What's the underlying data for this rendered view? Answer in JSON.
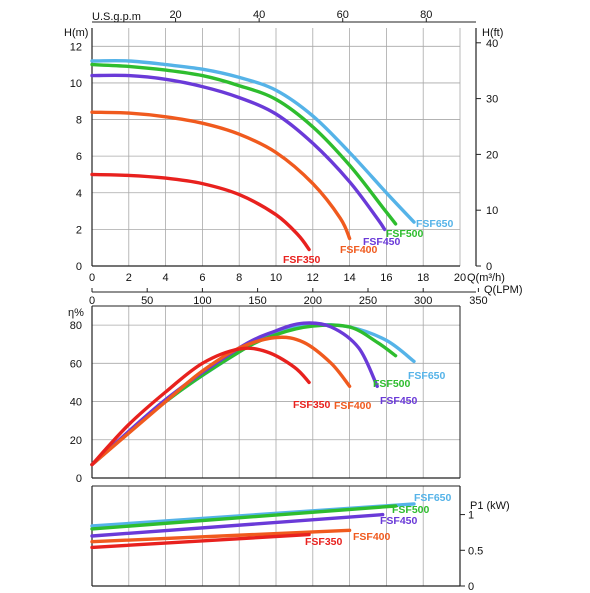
{
  "chart_data": [
    {
      "panel": "head",
      "type": "line",
      "x_unit_label": "Q(m³/h)",
      "xlim": [
        0,
        20
      ],
      "x_ticks": [
        0,
        2,
        4,
        6,
        8,
        10,
        12,
        14,
        16,
        18,
        20
      ],
      "secondary_x": {
        "label": "Q(LPM)",
        "ticks": [
          0,
          50,
          100,
          150,
          200,
          250,
          300,
          350
        ]
      },
      "top_x": {
        "label": "U.S.g.p.m",
        "ticks": [
          20,
          40,
          60,
          80
        ]
      },
      "ylabel": "H(m)",
      "ylim": [
        0,
        13
      ],
      "y_ticks": [
        0,
        2,
        4,
        6,
        8,
        10,
        12
      ],
      "secondary_y": {
        "label": "H(ft)",
        "ticks": [
          0,
          10,
          20,
          30,
          40
        ]
      },
      "grid": true,
      "series": [
        {
          "name": "FSF650",
          "color": "#55b3e8",
          "points": [
            [
              0,
              11.2
            ],
            [
              2,
              11.2
            ],
            [
              4,
              11.0
            ],
            [
              6,
              10.75
            ],
            [
              8,
              10.3
            ],
            [
              10,
              9.6
            ],
            [
              12,
              8.2
            ],
            [
              14,
              6.2
            ],
            [
              16,
              4.0
            ],
            [
              17.5,
              2.4
            ]
          ]
        },
        {
          "name": "FSF500",
          "color": "#2ebd2e",
          "points": [
            [
              0,
              11.0
            ],
            [
              2,
              10.9
            ],
            [
              4,
              10.7
            ],
            [
              6,
              10.4
            ],
            [
              8,
              9.85
            ],
            [
              10,
              9.1
            ],
            [
              12,
              7.6
            ],
            [
              14,
              5.5
            ],
            [
              15.8,
              3.2
            ],
            [
              16.5,
              2.3
            ]
          ]
        },
        {
          "name": "FSF450",
          "color": "#6a3ad8",
          "points": [
            [
              0,
              10.4
            ],
            [
              2,
              10.4
            ],
            [
              4,
              10.2
            ],
            [
              6,
              9.8
            ],
            [
              8,
              9.2
            ],
            [
              10,
              8.3
            ],
            [
              12,
              6.7
            ],
            [
              14,
              4.6
            ],
            [
              15.5,
              2.6
            ],
            [
              15.9,
              2.0
            ]
          ]
        },
        {
          "name": "FSF400",
          "color": "#f05a1e",
          "points": [
            [
              0,
              8.4
            ],
            [
              2,
              8.35
            ],
            [
              4,
              8.15
            ],
            [
              6,
              7.8
            ],
            [
              8,
              7.2
            ],
            [
              10,
              6.2
            ],
            [
              12,
              4.5
            ],
            [
              13.5,
              2.6
            ],
            [
              14.0,
              1.5
            ]
          ]
        },
        {
          "name": "FSF350",
          "color": "#e8211e",
          "points": [
            [
              0,
              5.0
            ],
            [
              2,
              4.95
            ],
            [
              4,
              4.8
            ],
            [
              6,
              4.5
            ],
            [
              8,
              3.9
            ],
            [
              10,
              2.8
            ],
            [
              11.2,
              1.7
            ],
            [
              11.8,
              0.9
            ]
          ]
        }
      ]
    },
    {
      "panel": "efficiency",
      "type": "line",
      "ylabel": "η%",
      "ylim": [
        0,
        90
      ],
      "y_ticks": [
        0,
        20,
        40,
        60,
        80
      ],
      "xlim": [
        0,
        20
      ],
      "grid": true,
      "series": [
        {
          "name": "FSF650",
          "color": "#55b3e8",
          "points": [
            [
              0,
              7
            ],
            [
              4,
              40
            ],
            [
              8,
              66
            ],
            [
              10,
              76
            ],
            [
              12,
              80
            ],
            [
              14,
              79
            ],
            [
              16,
              72
            ],
            [
              17.5,
              61
            ]
          ]
        },
        {
          "name": "FSF500",
          "color": "#2ebd2e",
          "points": [
            [
              0,
              7
            ],
            [
              4,
              40
            ],
            [
              8,
              66
            ],
            [
              10,
              75
            ],
            [
              12,
              79.5
            ],
            [
              14,
              79
            ],
            [
              15.5,
              71
            ],
            [
              16.5,
              64
            ]
          ]
        },
        {
          "name": "FSF450",
          "color": "#6a3ad8",
          "points": [
            [
              0,
              7
            ],
            [
              4,
              41
            ],
            [
              8,
              68
            ],
            [
              10,
              77
            ],
            [
              11.5,
              81
            ],
            [
              13,
              79
            ],
            [
              14.5,
              68
            ],
            [
              15.5,
              48
            ]
          ]
        },
        {
          "name": "FSF400",
          "color": "#f05a1e",
          "points": [
            [
              0,
              7
            ],
            [
              4,
              40
            ],
            [
              6,
              56
            ],
            [
              8,
              68
            ],
            [
              10,
              73.5
            ],
            [
              11.5,
              71
            ],
            [
              13,
              60
            ],
            [
              14,
              48
            ]
          ]
        },
        {
          "name": "FSF350",
          "color": "#e8211e",
          "points": [
            [
              0,
              7
            ],
            [
              2,
              28
            ],
            [
              4,
              45
            ],
            [
              6,
              60
            ],
            [
              8,
              67.5
            ],
            [
              9.5,
              66
            ],
            [
              11,
              58
            ],
            [
              11.8,
              50
            ]
          ]
        }
      ]
    },
    {
      "panel": "power",
      "type": "line",
      "ylabel": "P1 (kW)",
      "ylim": [
        0,
        1.4
      ],
      "y_ticks": [
        0,
        0.5,
        1
      ],
      "xlim": [
        0,
        20
      ],
      "grid": true,
      "series": [
        {
          "name": "FSF650",
          "color": "#55b3e8",
          "points": [
            [
              0,
              0.84
            ],
            [
              17.5,
              1.15
            ]
          ]
        },
        {
          "name": "FSF500",
          "color": "#2ebd2e",
          "points": [
            [
              0,
              0.8
            ],
            [
              16.5,
              1.12
            ]
          ]
        },
        {
          "name": "FSF450",
          "color": "#6a3ad8",
          "points": [
            [
              0,
              0.7
            ],
            [
              15.8,
              1.0
            ]
          ]
        },
        {
          "name": "FSF400",
          "color": "#f05a1e",
          "points": [
            [
              0,
              0.62
            ],
            [
              14,
              0.78
            ]
          ]
        },
        {
          "name": "FSF350",
          "color": "#e8211e",
          "points": [
            [
              0,
              0.54
            ],
            [
              11.8,
              0.72
            ]
          ]
        }
      ]
    }
  ]
}
